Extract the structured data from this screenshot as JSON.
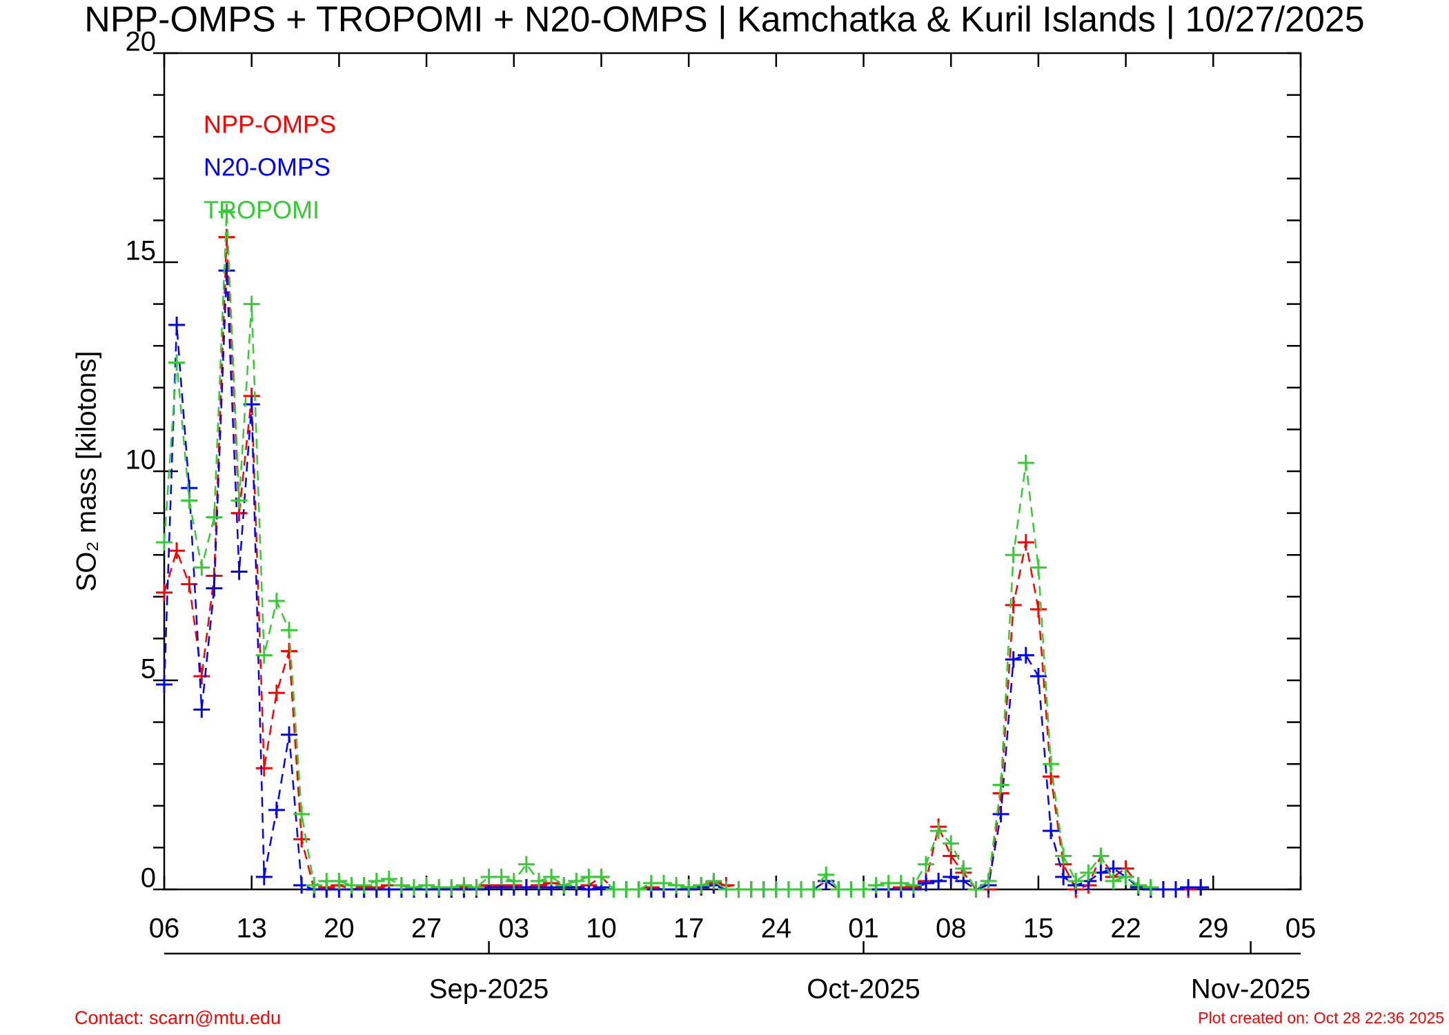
{
  "chart_data": {
    "type": "line",
    "title": "NPP-OMPS + TROPOMI + N20-OMPS | Kamchatka & Kuril Islands | 10/27/2025",
    "y_label": "SO₂ mass [kilotons]",
    "contact": "Contact: scarn@mtu.edu",
    "created": "Plot created on: Oct 28 22:36 2025",
    "legend": "upper left",
    "x": [
      "2025-08-06",
      "2025-08-07",
      "2025-08-08",
      "2025-08-09",
      "2025-08-10",
      "2025-08-11",
      "2025-08-12",
      "2025-08-13",
      "2025-08-14",
      "2025-08-15",
      "2025-08-16",
      "2025-08-17",
      "2025-08-18",
      "2025-08-19",
      "2025-08-20",
      "2025-08-21",
      "2025-08-22",
      "2025-08-23",
      "2025-08-24",
      "2025-08-25",
      "2025-08-26",
      "2025-08-27",
      "2025-08-28",
      "2025-08-29",
      "2025-08-30",
      "2025-08-31",
      "2025-09-01",
      "2025-09-02",
      "2025-09-03",
      "2025-09-04",
      "2025-09-05",
      "2025-09-06",
      "2025-09-07",
      "2025-09-08",
      "2025-09-09",
      "2025-09-10",
      "2025-09-11",
      "2025-09-12",
      "2025-09-13",
      "2025-09-14",
      "2025-09-15",
      "2025-09-16",
      "2025-09-17",
      "2025-09-18",
      "2025-09-19",
      "2025-09-20",
      "2025-09-21",
      "2025-09-22",
      "2025-09-23",
      "2025-09-24",
      "2025-09-25",
      "2025-09-26",
      "2025-09-27",
      "2025-09-28",
      "2025-09-29",
      "2025-09-30",
      "2025-10-01",
      "2025-10-02",
      "2025-10-03",
      "2025-10-04",
      "2025-10-05",
      "2025-10-06",
      "2025-10-07",
      "2025-10-08",
      "2025-10-09",
      "2025-10-10",
      "2025-10-11",
      "2025-10-12",
      "2025-10-13",
      "2025-10-14",
      "2025-10-15",
      "2025-10-16",
      "2025-10-17",
      "2025-10-18",
      "2025-10-19",
      "2025-10-20",
      "2025-10-21",
      "2025-10-22",
      "2025-10-23",
      "2025-10-24",
      "2025-10-25",
      "2025-10-26",
      "2025-10-27",
      "2025-10-28"
    ],
    "series": [
      {
        "name": "NPP-OMPS",
        "color": "#ff0000",
        "values": [
          7.1,
          8.1,
          7.3,
          5.1,
          7.5,
          15.6,
          9.0,
          11.8,
          2.9,
          4.7,
          5.7,
          1.2,
          0,
          0.05,
          0.1,
          0,
          0.05,
          0.05,
          0.1,
          0.1,
          0,
          0,
          0,
          0,
          0.05,
          0.05,
          0.1,
          0.1,
          0.1,
          0.05,
          0.1,
          0.15,
          0.1,
          0.05,
          0.1,
          0.3,
          0,
          0,
          0,
          0.05,
          0,
          0,
          0,
          0.1,
          0.15,
          0.1,
          0,
          0,
          0,
          0,
          0,
          0,
          0,
          0.2,
          0,
          0,
          0,
          0,
          0,
          0.05,
          0.05,
          0.2,
          1.5,
          0.8,
          0.4,
          0,
          0,
          2.3,
          6.8,
          8.3,
          6.7,
          2.7,
          0.6,
          0,
          0.1,
          0.8,
          0.3,
          0.5,
          0.1,
          0,
          0,
          0,
          0,
          0.05
        ]
      },
      {
        "name": "N20-OMPS",
        "color": "#0000ff",
        "values": [
          4.9,
          13.5,
          9.6,
          4.3,
          7.2,
          14.8,
          7.6,
          11.6,
          0.3,
          1.9,
          3.7,
          0.1,
          0,
          0,
          0,
          0,
          0,
          0,
          0,
          0,
          0,
          0,
          0,
          0,
          0,
          0,
          0.05,
          0.05,
          0.05,
          0.05,
          0.05,
          0.05,
          0.05,
          0.05,
          0,
          0.05,
          0,
          0,
          0,
          0,
          0,
          0,
          0,
          0.05,
          0.1,
          0,
          0,
          0,
          0,
          0,
          0,
          0,
          0,
          0.2,
          0,
          0,
          0,
          0,
          0,
          0,
          0,
          0.15,
          0.2,
          0.3,
          0.2,
          0,
          0.1,
          1.8,
          5.5,
          5.6,
          5.1,
          1.4,
          0.3,
          0.1,
          0.2,
          0.4,
          0.5,
          0.3,
          0.05,
          0,
          0,
          0,
          0.05,
          0.05
        ]
      },
      {
        "name": "TROPOMI",
        "color": "#33cc33",
        "values": [
          8.3,
          12.6,
          9.3,
          7.7,
          8.9,
          16.2,
          9.3,
          14.0,
          5.6,
          6.9,
          6.2,
          1.8,
          0.1,
          0.2,
          0.2,
          0.1,
          0.1,
          0.2,
          0.25,
          0.1,
          0.05,
          0.1,
          0.05,
          0.05,
          0.1,
          0.05,
          0.3,
          0.3,
          0.2,
          0.6,
          0.2,
          0.3,
          0.1,
          0.2,
          0.3,
          0.3,
          0,
          0,
          0,
          0.15,
          0.15,
          0.1,
          0.05,
          0.1,
          0.2,
          0,
          0,
          0,
          0,
          0,
          0,
          0,
          0,
          0.35,
          0,
          0,
          0,
          0.1,
          0.15,
          0.15,
          0.1,
          0.6,
          1.4,
          1.1,
          0.5,
          0,
          0.2,
          2.5,
          8.0,
          10.2,
          7.7,
          3.0,
          0.8,
          0.2,
          0.4,
          0.8,
          0.2,
          0.3,
          0.1,
          0.05,
          null,
          null,
          null,
          null
        ]
      }
    ],
    "xlim": [
      "2025-08-06",
      "2025-11-05"
    ],
    "xticks": [
      {
        "value": "2025-08-06",
        "label": "06"
      },
      {
        "value": "2025-08-13",
        "label": "13"
      },
      {
        "value": "2025-08-20",
        "label": "20"
      },
      {
        "value": "2025-08-27",
        "label": "27"
      },
      {
        "value": "2025-09-03",
        "label": "03"
      },
      {
        "value": "2025-09-10",
        "label": "10"
      },
      {
        "value": "2025-09-17",
        "label": "17"
      },
      {
        "value": "2025-09-24",
        "label": "24"
      },
      {
        "value": "2025-10-01",
        "label": "01"
      },
      {
        "value": "2025-10-08",
        "label": "08"
      },
      {
        "value": "2025-10-15",
        "label": "15"
      },
      {
        "value": "2025-10-22",
        "label": "22"
      },
      {
        "value": "2025-10-29",
        "label": "29"
      },
      {
        "value": "2025-11-05",
        "label": "05"
      }
    ],
    "month_ticks": [
      {
        "value": "2025-09-01",
        "label": "Sep-2025"
      },
      {
        "value": "2025-10-01",
        "label": "Oct-2025"
      },
      {
        "value": "2025-11-01",
        "label": "Nov-2025"
      }
    ],
    "ylim": [
      0,
      20
    ],
    "yticks": [
      0,
      5,
      10,
      15,
      20
    ],
    "yminorticks": [
      1,
      2,
      3,
      4,
      6,
      7,
      8,
      9,
      11,
      12,
      13,
      14,
      16,
      17,
      18,
      19
    ]
  }
}
